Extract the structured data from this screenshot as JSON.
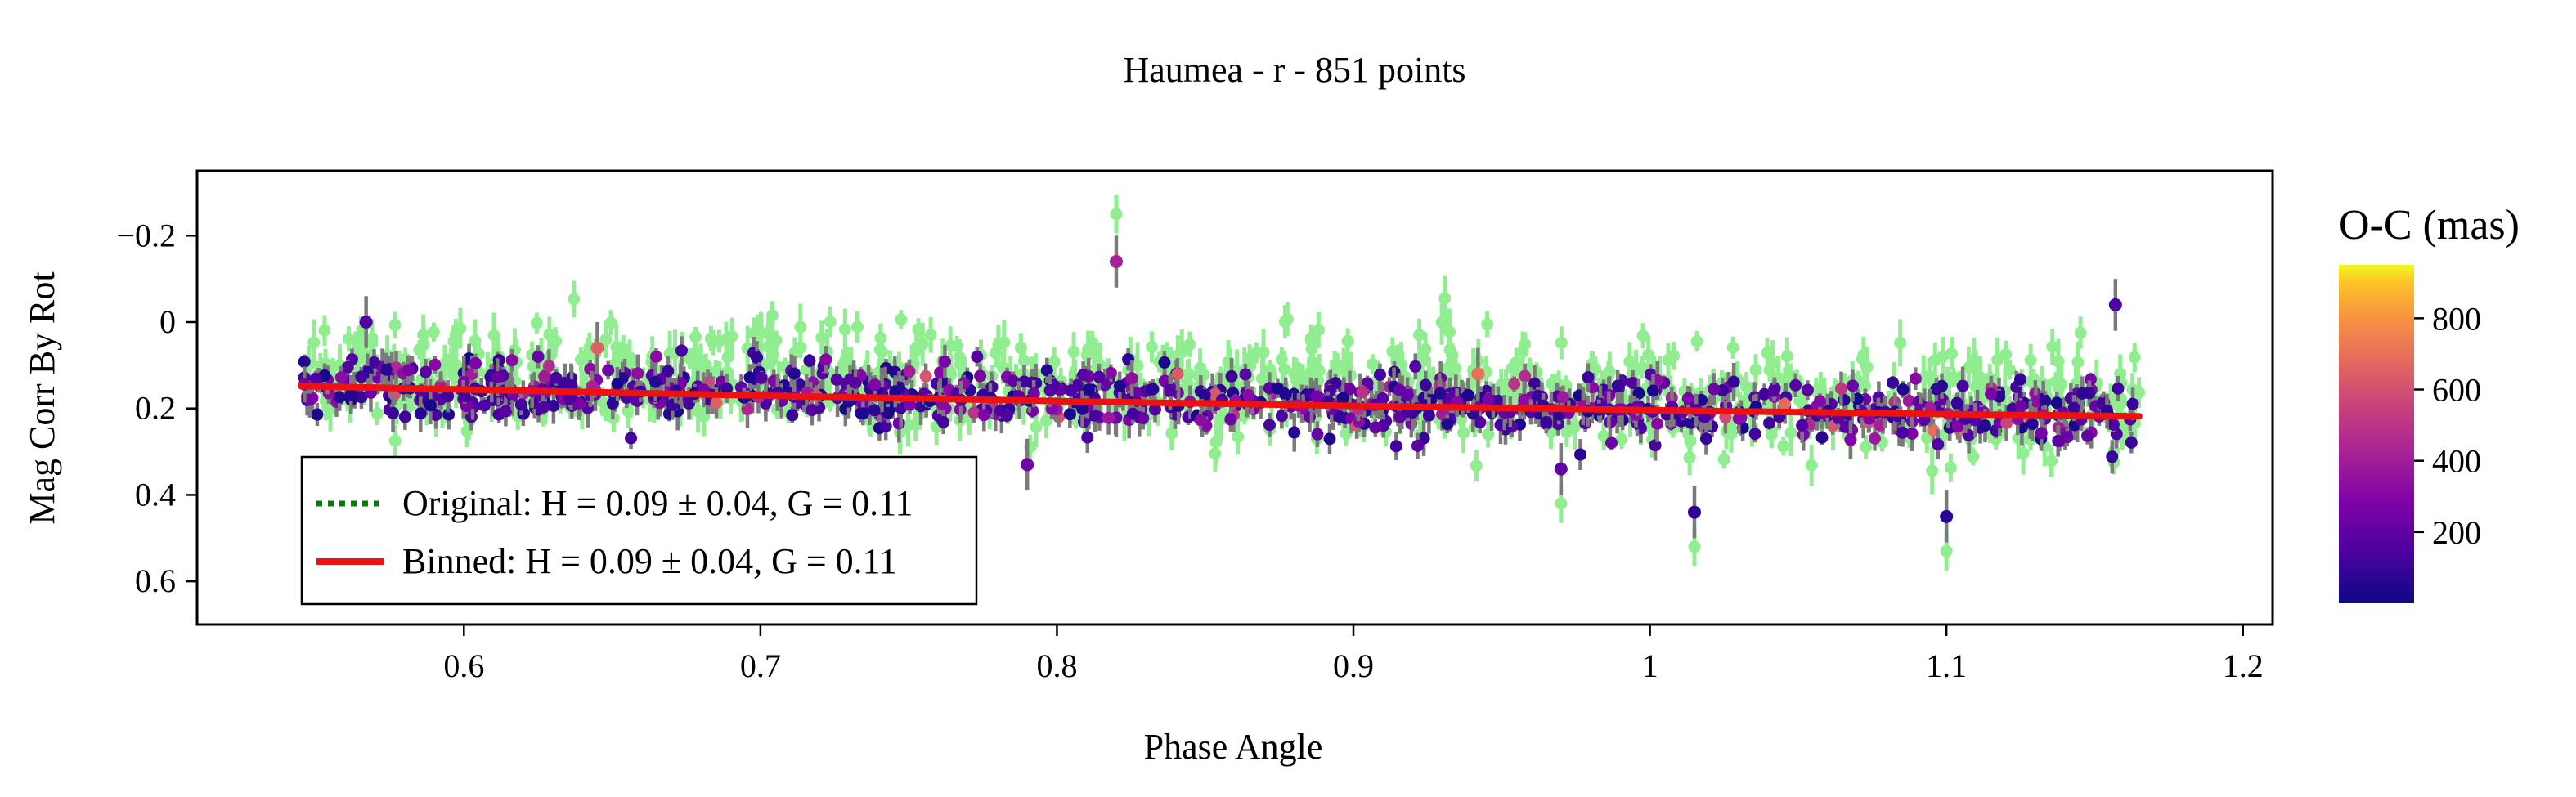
{
  "chart_data": {
    "type": "scatter",
    "title": "Haumea - r - 851 points",
    "xlabel": "Phase Angle",
    "ylabel": "Mag Corr By Rot",
    "xlim": [
      0.51,
      1.21
    ],
    "ylim": [
      0.7,
      -0.35
    ],
    "y_inverted": true,
    "x_ticks": [
      0.6,
      0.7,
      0.8,
      0.9,
      1.0,
      1.1,
      1.2
    ],
    "x_tick_labels": [
      "0.6",
      "0.7",
      "0.8",
      "0.9",
      "1",
      "1.1",
      "1.2"
    ],
    "y_ticks": [
      -0.2,
      0,
      0.2,
      0.4,
      0.6
    ],
    "y_tick_labels": [
      "−0.2",
      "0",
      "0.2",
      "0.4",
      "0.6"
    ],
    "grid": false,
    "n_points": 851,
    "x_range": [
      0.545,
      1.165
    ],
    "legend": {
      "position": "lower-left",
      "entries": [
        {
          "label": "Original: H = 0.09 ± 0.04, G = 0.11",
          "color": "#008000",
          "style": "dotted"
        },
        {
          "label": "Binned: H = 0.09 ± 0.04, G = 0.11",
          "color": "#ee1111",
          "style": "solid"
        }
      ]
    },
    "series": [
      {
        "name": "Original",
        "kind": "points",
        "color": "#90ee90",
        "mean_y": [
          [
            0.545,
            0.12
          ],
          [
            0.6,
            0.13
          ],
          [
            0.7,
            0.12
          ],
          [
            0.8,
            0.14
          ],
          [
            0.9,
            0.16
          ],
          [
            1.0,
            0.17
          ],
          [
            1.1,
            0.18
          ],
          [
            1.165,
            0.19
          ]
        ],
        "scatter_sd": 0.06,
        "notable_points": [
          {
            "x": 0.82,
            "y": -0.25
          },
          {
            "x": 0.97,
            "y": 0.42
          },
          {
            "x": 1.015,
            "y": 0.52
          },
          {
            "x": 1.1,
            "y": 0.53
          }
        ]
      },
      {
        "name": "Binned",
        "kind": "points",
        "colored_by": "O-C (mas)",
        "mean_y": [
          [
            0.545,
            0.15
          ],
          [
            0.7,
            0.16
          ],
          [
            0.8,
            0.17
          ],
          [
            0.9,
            0.19
          ],
          [
            1.0,
            0.2
          ],
          [
            1.1,
            0.21
          ],
          [
            1.165,
            0.21
          ]
        ],
        "scatter_sd": 0.035,
        "notable_points": [
          {
            "x": 0.82,
            "y": -0.14,
            "oc": 420
          },
          {
            "x": 0.79,
            "y": 0.33,
            "oc": 250
          },
          {
            "x": 0.97,
            "y": 0.34,
            "oc": 200
          },
          {
            "x": 1.015,
            "y": 0.44,
            "oc": 80
          },
          {
            "x": 1.1,
            "y": 0.45,
            "oc": 60
          },
          {
            "x": 1.157,
            "y": -0.04,
            "oc": 150
          },
          {
            "x": 0.567,
            "y": 0.0,
            "oc": 150
          },
          {
            "x": 0.942,
            "y": 0.12,
            "oc": 700
          },
          {
            "x": 0.645,
            "y": 0.06,
            "oc": 650
          }
        ]
      },
      {
        "name": "Binned fit",
        "kind": "line",
        "color": "#ee1111",
        "x": [
          0.545,
          0.6,
          0.7,
          0.8,
          0.9,
          1.0,
          1.1,
          1.165
        ],
        "y": [
          0.148,
          0.156,
          0.17,
          0.183,
          0.194,
          0.204,
          0.213,
          0.218
        ]
      }
    ],
    "colorbar": {
      "title": "O-C (mas)",
      "colormap": "plasma",
      "range": [
        0,
        950
      ],
      "ticks": [
        200,
        400,
        600,
        800
      ],
      "tick_labels": [
        "200",
        "400",
        "600",
        "800"
      ]
    }
  }
}
